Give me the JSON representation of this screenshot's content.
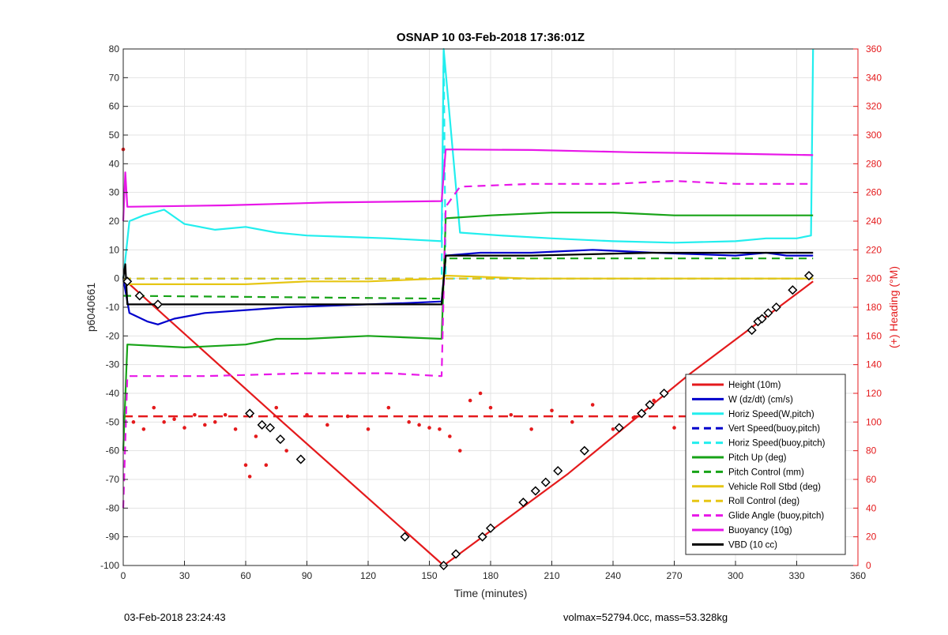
{
  "chart_data": {
    "type": "line",
    "title": "OSNAP 10 03-Feb-2018 17:36:01Z",
    "xlabel": "Time (minutes)",
    "ylabel": "p6040661",
    "y2label": "(+) Heading (°M)",
    "xlim": [
      0,
      360
    ],
    "ylim": [
      -100,
      80
    ],
    "y2lim": [
      0,
      360
    ],
    "xticks": [
      0,
      30,
      60,
      90,
      120,
      150,
      180,
      210,
      240,
      270,
      300,
      330,
      360
    ],
    "yticks": [
      -100,
      -90,
      -80,
      -70,
      -60,
      -50,
      -40,
      -30,
      -20,
      -10,
      0,
      10,
      20,
      30,
      40,
      50,
      60,
      70,
      80
    ],
    "y2ticks": [
      0,
      20,
      40,
      60,
      80,
      100,
      120,
      140,
      160,
      180,
      200,
      220,
      240,
      260,
      280,
      300,
      320,
      340,
      360
    ],
    "grid": true,
    "legend_position": "lower-right",
    "colors": {
      "red": "#e41a1c",
      "blue": "#0000cc",
      "cyan": "#22eeee",
      "green": "#17a317",
      "yellow": "#e6c614",
      "magenta": "#e817e8",
      "black": "#000000",
      "right_axis": "#e41a1c"
    },
    "series": [
      {
        "name": "Height (10m)",
        "color": "#e41a1c",
        "style": "solid",
        "x": [
          0,
          78,
          157,
          218,
          278,
          338
        ],
        "y": [
          0,
          -50,
          -100,
          -68,
          -33,
          -1
        ]
      },
      {
        "name": "W (dz/dt) (cm/s)",
        "color": "#0000cc",
        "style": "solid",
        "x": [
          0,
          3,
          12,
          17,
          25,
          40,
          60,
          80,
          100,
          120,
          140,
          156,
          158,
          175,
          200,
          230,
          260,
          300,
          315,
          325,
          338
        ],
        "y": [
          0,
          -12,
          -15,
          -16,
          -14,
          -12,
          -11,
          -10,
          -9.5,
          -9,
          -8.5,
          -8,
          8,
          9,
          9,
          10,
          9,
          8,
          9,
          8,
          8
        ]
      },
      {
        "name": "Horiz Speed(W,pitch)",
        "color": "#22eeee",
        "style": "solid",
        "x": [
          0,
          3,
          10,
          20,
          30,
          45,
          60,
          75,
          90,
          110,
          130,
          156,
          157,
          165,
          185,
          210,
          240,
          270,
          300,
          315,
          330,
          337,
          338
        ],
        "y": [
          0,
          20,
          22,
          24,
          19,
          17,
          18,
          16,
          15,
          14.5,
          14,
          13,
          80,
          16,
          15,
          14,
          13,
          12.5,
          13,
          14,
          14,
          15,
          80
        ]
      },
      {
        "name": "Vert Speed(buoy,pitch)",
        "color": "#0000cc",
        "style": "dashed",
        "x": [
          0,
          338
        ],
        "y": [
          0,
          0
        ]
      },
      {
        "name": "Horiz Speed(buoy,pitch)",
        "color": "#22eeee",
        "style": "dashed",
        "x": [
          0,
          156,
          157,
          158,
          338
        ],
        "y": [
          0,
          0,
          80,
          0,
          0
        ]
      },
      {
        "name": "Pitch Up (deg)",
        "color": "#17a317",
        "style": "solid",
        "x": [
          0,
          2,
          30,
          60,
          75,
          90,
          120,
          156,
          158,
          180,
          210,
          240,
          270,
          300,
          320,
          338
        ],
        "y": [
          -60,
          -23,
          -24,
          -23,
          -21,
          -21,
          -20,
          -21,
          21,
          22,
          23,
          23,
          22,
          22,
          22,
          22
        ]
      },
      {
        "name": "Pitch Control (mm)",
        "color": "#17a317",
        "style": "dashed",
        "x": [
          0,
          156,
          158,
          338
        ],
        "y": [
          -6,
          -7,
          7,
          7
        ]
      },
      {
        "name": "Vehicle Roll Stbd (deg)",
        "color": "#e6c614",
        "style": "solid",
        "x": [
          0,
          2,
          30,
          60,
          90,
          120,
          156,
          158,
          200,
          240,
          280,
          300,
          330,
          338
        ],
        "y": [
          0,
          -2,
          -2,
          -2,
          -1,
          -1,
          0,
          1,
          0,
          0,
          0,
          0,
          0,
          0
        ]
      },
      {
        "name": "Roll Control (deg)",
        "color": "#e6c614",
        "style": "dashed",
        "x": [
          0,
          338
        ],
        "y": [
          0,
          0
        ]
      },
      {
        "name": "Glide Angle (buoy,pitch)",
        "color": "#e817e8",
        "style": "dashed",
        "x": [
          0,
          2,
          40,
          90,
          130,
          156,
          158,
          165,
          200,
          240,
          270,
          300,
          338
        ],
        "y": [
          -80,
          -34,
          -34,
          -33,
          -33,
          -34,
          25,
          32,
          33,
          33,
          34,
          33,
          33
        ]
      },
      {
        "name": "Buoyancy (10g)",
        "color": "#e817e8",
        "style": "solid",
        "x": [
          0,
          1,
          2,
          50,
          100,
          156,
          158,
          200,
          250,
          300,
          338
        ],
        "y": [
          20,
          37,
          25,
          25.5,
          26.5,
          27,
          45,
          44.8,
          44,
          43.5,
          43
        ]
      },
      {
        "name": "VBD (10 cc)",
        "color": "#000000",
        "style": "solid",
        "x": [
          0,
          1,
          2,
          80,
          156,
          158,
          200,
          260,
          300,
          338
        ],
        "y": [
          0,
          5,
          -9,
          -9,
          -9,
          8,
          8,
          9,
          9,
          9
        ]
      }
    ],
    "heading": {
      "name": "Heading",
      "color": "#e41a1c",
      "axis": "right",
      "x": [
        0,
        5,
        10,
        15,
        20,
        25,
        30,
        35,
        40,
        45,
        50,
        55,
        60,
        62,
        65,
        70,
        75,
        80,
        90,
        100,
        110,
        120,
        130,
        140,
        145,
        150,
        155,
        160,
        165,
        170,
        175,
        180,
        190,
        200,
        210,
        220,
        230,
        240,
        250,
        260,
        270,
        280,
        290,
        300,
        310,
        320,
        330,
        338
      ],
      "y": [
        290,
        100,
        95,
        110,
        100,
        102,
        96,
        105,
        98,
        100,
        105,
        95,
        70,
        62,
        90,
        70,
        110,
        80,
        105,
        98,
        104,
        95,
        110,
        100,
        98,
        96,
        95,
        90,
        80,
        115,
        120,
        110,
        105,
        95,
        108,
        100,
        112,
        95,
        103,
        115,
        96,
        104,
        98,
        110,
        95,
        102,
        115,
        100
      ]
    },
    "heading_ref": {
      "y": 104,
      "style": "dashed",
      "color": "#e41a1c",
      "axis": "right"
    },
    "markers": {
      "symbol": "diamond",
      "x": [
        2,
        8,
        17,
        62,
        68,
        72,
        77,
        87,
        138,
        157,
        163,
        176,
        180,
        196,
        202,
        207,
        213,
        226,
        243,
        254,
        258,
        265,
        308,
        311,
        313,
        316,
        320,
        328,
        336
      ],
      "y": [
        -1,
        -6,
        -9,
        -47,
        -51,
        -52,
        -56,
        -63,
        -90,
        -100,
        -96,
        -90,
        -87,
        -78,
        -74,
        -71,
        -67,
        -60,
        -52,
        -47,
        -44,
        -40,
        -18,
        -15,
        -14,
        -12,
        -10,
        -4,
        1
      ]
    }
  },
  "footer": {
    "left": "03-Feb-2018 23:24:43",
    "right": "volmax=52794.0cc, mass=53.328kg"
  }
}
